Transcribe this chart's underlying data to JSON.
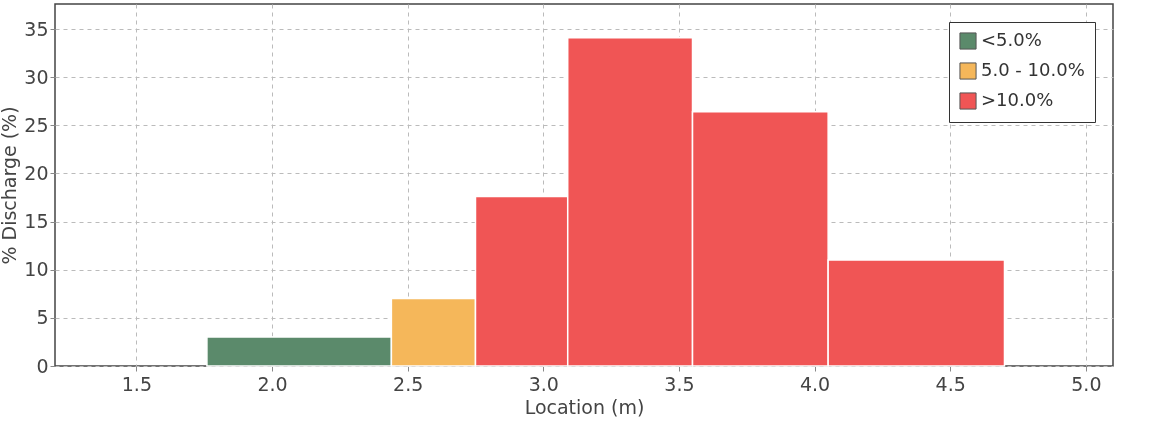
{
  "chart_data": {
    "type": "histogram",
    "xlabel": "Location (m)",
    "ylabel": "% Discharge (%)",
    "bins": [
      1.76,
      2.44,
      2.75,
      3.09,
      3.55,
      4.05,
      4.7
    ],
    "series": [
      {
        "name": "<5.0%",
        "color": "#5b8a6b",
        "values": [
          3.0,
          null,
          null,
          null,
          null,
          null
        ]
      },
      {
        "name": "5.0 - 10.0%",
        "color": "#f5b75a",
        "values": [
          null,
          7.0,
          null,
          null,
          null,
          null
        ]
      },
      {
        "name": ">10.0%",
        "color": "#f05555",
        "values": [
          null,
          null,
          17.6,
          34.1,
          26.4,
          11.0
        ]
      }
    ],
    "xlim": [
      1.2,
      5.1
    ],
    "xticks": [
      1.5,
      {
        "value": 2,
        "label": "2.0"
      },
      2.5,
      {
        "value": 3,
        "label": "3.0"
      },
      3.5,
      {
        "value": 4,
        "label": "4.0"
      },
      4.5,
      {
        "value": 5,
        "label": "5.0"
      }
    ],
    "ylim": [
      0,
      37.6
    ],
    "yticks": [
      0,
      5,
      10,
      15,
      20,
      25,
      30,
      35
    ],
    "grid": true,
    "legend": "top right"
  }
}
